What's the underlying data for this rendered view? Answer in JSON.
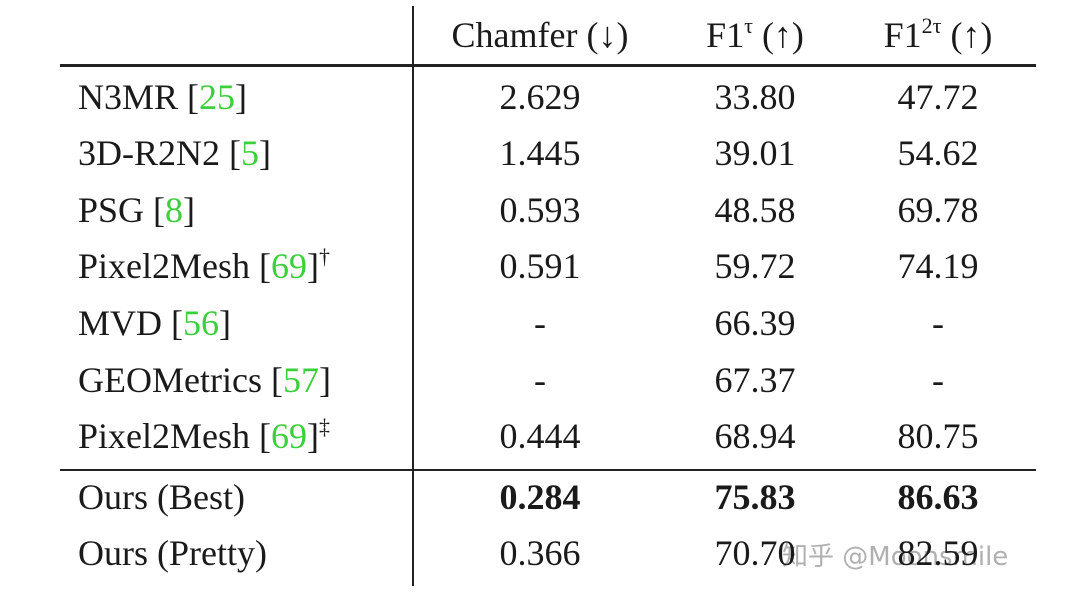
{
  "table": {
    "header": [
      {
        "base": "Chamfer (↓)"
      },
      {
        "base": "F1",
        "sup": "τ",
        "rest": " (↑)"
      },
      {
        "base": "F1",
        "sup": "2τ",
        "rest": " (↑)"
      }
    ],
    "rows": [
      {
        "label": [
          "N3MR [",
          "25",
          "]"
        ],
        "cells": [
          "2.629",
          "33.80",
          "47.72"
        ]
      },
      {
        "label": [
          "3D-R2N2 [",
          "5",
          "]"
        ],
        "cells": [
          "1.445",
          "39.01",
          "54.62"
        ]
      },
      {
        "label": [
          "PSG [",
          "8",
          "]"
        ],
        "cells": [
          "0.593",
          "48.58",
          "69.78"
        ]
      },
      {
        "label": [
          "Pixel2Mesh [",
          "69",
          "]"
        ],
        "mark": "†",
        "cells": [
          "0.591",
          "59.72",
          "74.19"
        ]
      },
      {
        "label": [
          "MVD [",
          "56",
          "]"
        ],
        "cells": [
          "-",
          "66.39",
          "-"
        ]
      },
      {
        "label": [
          "GEOMetrics [",
          "57",
          "]"
        ],
        "cells": [
          "-",
          "67.37",
          "-"
        ]
      },
      {
        "label": [
          "Pixel2Mesh [",
          "69",
          "]"
        ],
        "mark": "‡",
        "cells": [
          "0.444",
          "68.94",
          "80.75"
        ]
      },
      {
        "label": [
          "Ours (Best)"
        ],
        "cells": [
          "0.284",
          "75.83",
          "86.63"
        ],
        "bold": true
      },
      {
        "label": [
          "Ours (Pretty)"
        ],
        "cells": [
          "0.366",
          "70.70",
          "82.59"
        ]
      }
    ]
  },
  "watermark": "知乎 @Moonsmile"
}
